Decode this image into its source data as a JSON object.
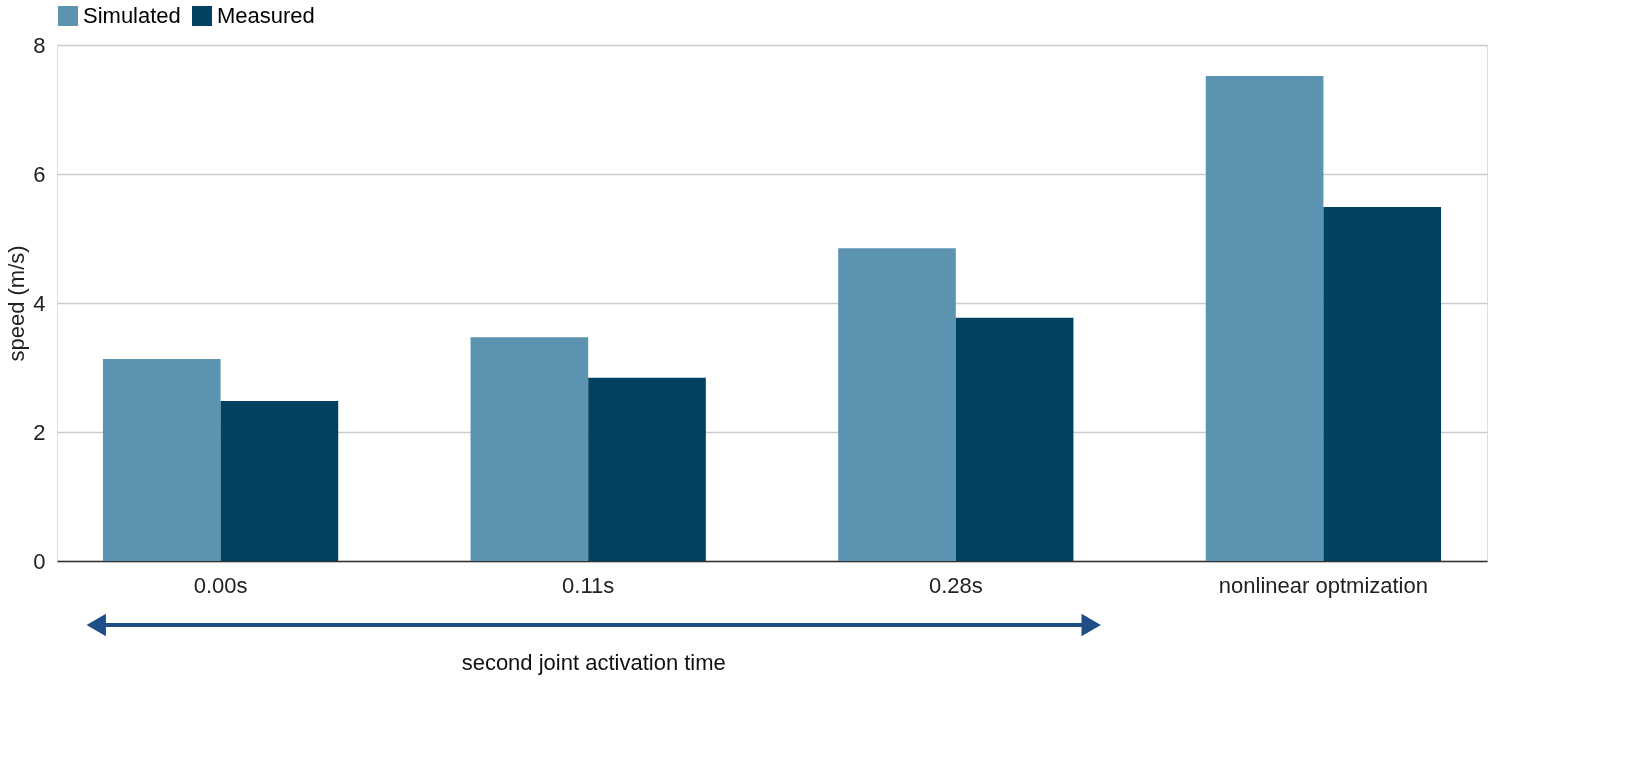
{
  "chart_data": {
    "type": "bar",
    "ylabel": "speed (m/s)",
    "categories": [
      "0.00s",
      "0.11s",
      "0.28s",
      "nonlinear optmization"
    ],
    "series": [
      {
        "name": "Simulated",
        "color": "#5b93b0",
        "values": [
          3.13,
          3.47,
          4.85,
          7.52
        ]
      },
      {
        "name": "Measured",
        "color": "#00425f",
        "values": [
          2.48,
          2.84,
          3.77,
          5.49
        ]
      }
    ],
    "ylim": [
      0,
      8
    ],
    "yticks": [
      0,
      2,
      4,
      6,
      8
    ],
    "grid": "y",
    "legend": "top",
    "annotations": [
      "second joint activation time"
    ]
  }
}
